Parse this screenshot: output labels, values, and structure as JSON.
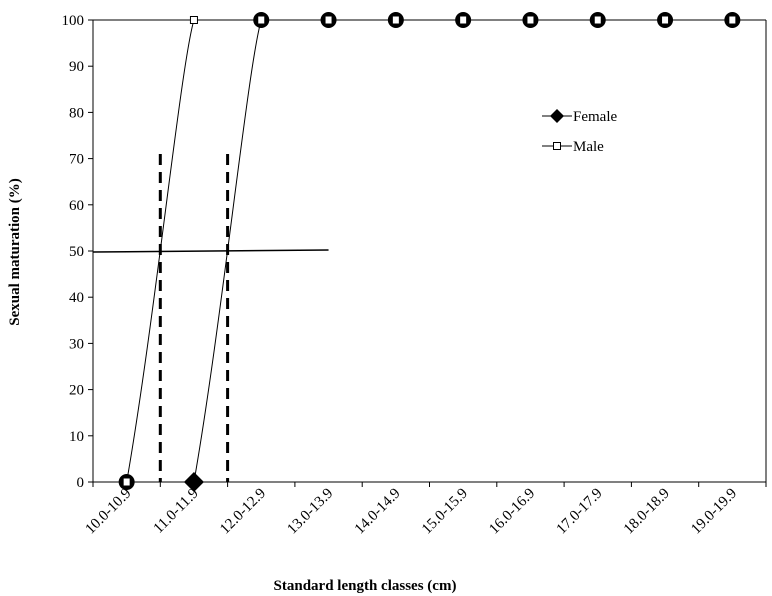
{
  "chart_data": {
    "type": "line",
    "categories": [
      "10.0-10.9",
      "11.0-11.9",
      "12.0-12.9",
      "13.0-13.9",
      "14.0-14.9",
      "15.0-15.9",
      "16.0-16.9",
      "17.0-17.9",
      "18.0-18.9",
      "19.0-19.9"
    ],
    "series": [
      {
        "name": "Female",
        "x": [
          1.5,
          2.5,
          3.5,
          4.5,
          5.5,
          6.5,
          7.5,
          8.5,
          9.5
        ],
        "values": [
          0,
          100,
          100,
          100,
          100,
          100,
          100,
          100,
          100
        ],
        "marker": "diamond"
      },
      {
        "name": "Male",
        "x": [
          0.5,
          1.5
        ],
        "values": [
          0,
          100
        ],
        "marker": "square-open"
      }
    ],
    "reference_lines": {
      "horizontal_y": 50,
      "vertical_x": [
        1.0,
        2.0
      ]
    },
    "xlabel": "Standard  length classes (cm)",
    "ylabel": "Sexual maturation  (%)",
    "ylim": [
      0,
      100
    ],
    "yticks": [
      0,
      10,
      20,
      30,
      40,
      50,
      60,
      70,
      80,
      90,
      100
    ],
    "legend": {
      "placement": "right",
      "entries": [
        "Female",
        "Male"
      ]
    },
    "grid": false
  }
}
